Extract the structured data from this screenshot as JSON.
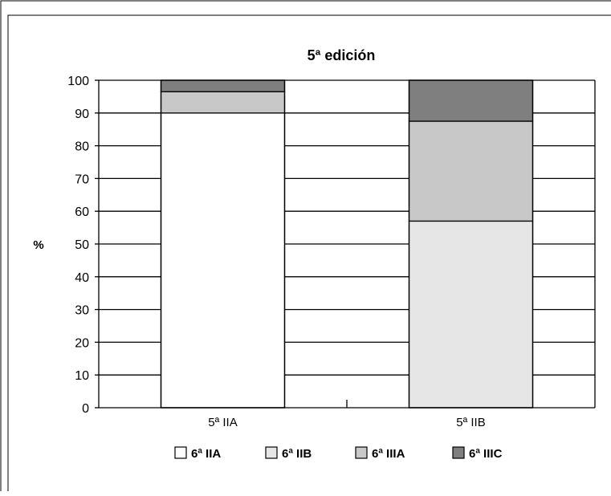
{
  "chart_data": {
    "type": "bar",
    "stacked": true,
    "title": "5ª edición",
    "xlabel": "",
    "ylabel": "%",
    "ylim": [
      0,
      100
    ],
    "yticks": [
      0,
      10,
      20,
      30,
      40,
      50,
      60,
      70,
      80,
      90,
      100
    ],
    "grid": true,
    "legend_position": "bottom",
    "categories": [
      "5ª IIA",
      "5ª IIB"
    ],
    "series": [
      {
        "name": "6ª IIA",
        "color": "#ffffff",
        "values": [
          90,
          0
        ]
      },
      {
        "name": "6ª IIB",
        "color": "#e6e6e6",
        "values": [
          0,
          57
        ]
      },
      {
        "name": "6ª IIIA",
        "color": "#c8c8c8",
        "values": [
          6.5,
          30.5
        ]
      },
      {
        "name": "6ª IIIC",
        "color": "#7f7f7f",
        "values": [
          3.5,
          12.5
        ]
      }
    ]
  }
}
